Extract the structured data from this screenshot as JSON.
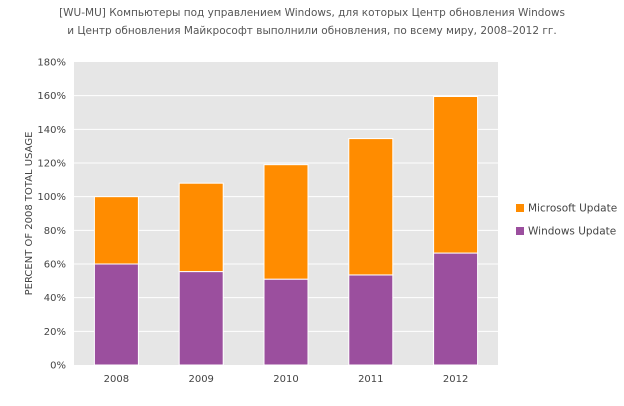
{
  "title_lines": [
    "[WU-MU] Компьютеры под управлением Windows, для которых Центр обновления Windows",
    "и Центр обновления Майкрософт выполнили обновления, по всему миру, 2008–2012 гг."
  ],
  "chart_data": {
    "type": "bar",
    "stacked": true,
    "title": "[WU-MU] Компьютеры под управлением Windows, для которых Центр обновления Windows и Центр обновления Майкрософт выполнили обновления, по всему миру, 2008–2012 гг.",
    "xlabel": "",
    "ylabel": "PERCENT OF 2008 TOTAL USAGE",
    "categories": [
      "2008",
      "2009",
      "2010",
      "2011",
      "2012"
    ],
    "series": [
      {
        "name": "Windows Update",
        "color": "#9B4F9E",
        "values": [
          60,
          55.5,
          51,
          53.5,
          66.5
        ]
      },
      {
        "name": "Microsoft Update",
        "color": "#FF8C00",
        "values": [
          40,
          52.5,
          68,
          81,
          93
        ]
      }
    ],
    "ylim": [
      0,
      180
    ],
    "yticks": [
      "0%",
      "20%",
      "40%",
      "60%",
      "80%",
      "100%",
      "120%",
      "140%",
      "160%",
      "180%"
    ],
    "grid": true,
    "legend_position": "right",
    "legend_order": [
      "Microsoft Update",
      "Windows Update"
    ],
    "plot_background": "#E6E6E6",
    "grid_color": "#FFFFFF"
  }
}
